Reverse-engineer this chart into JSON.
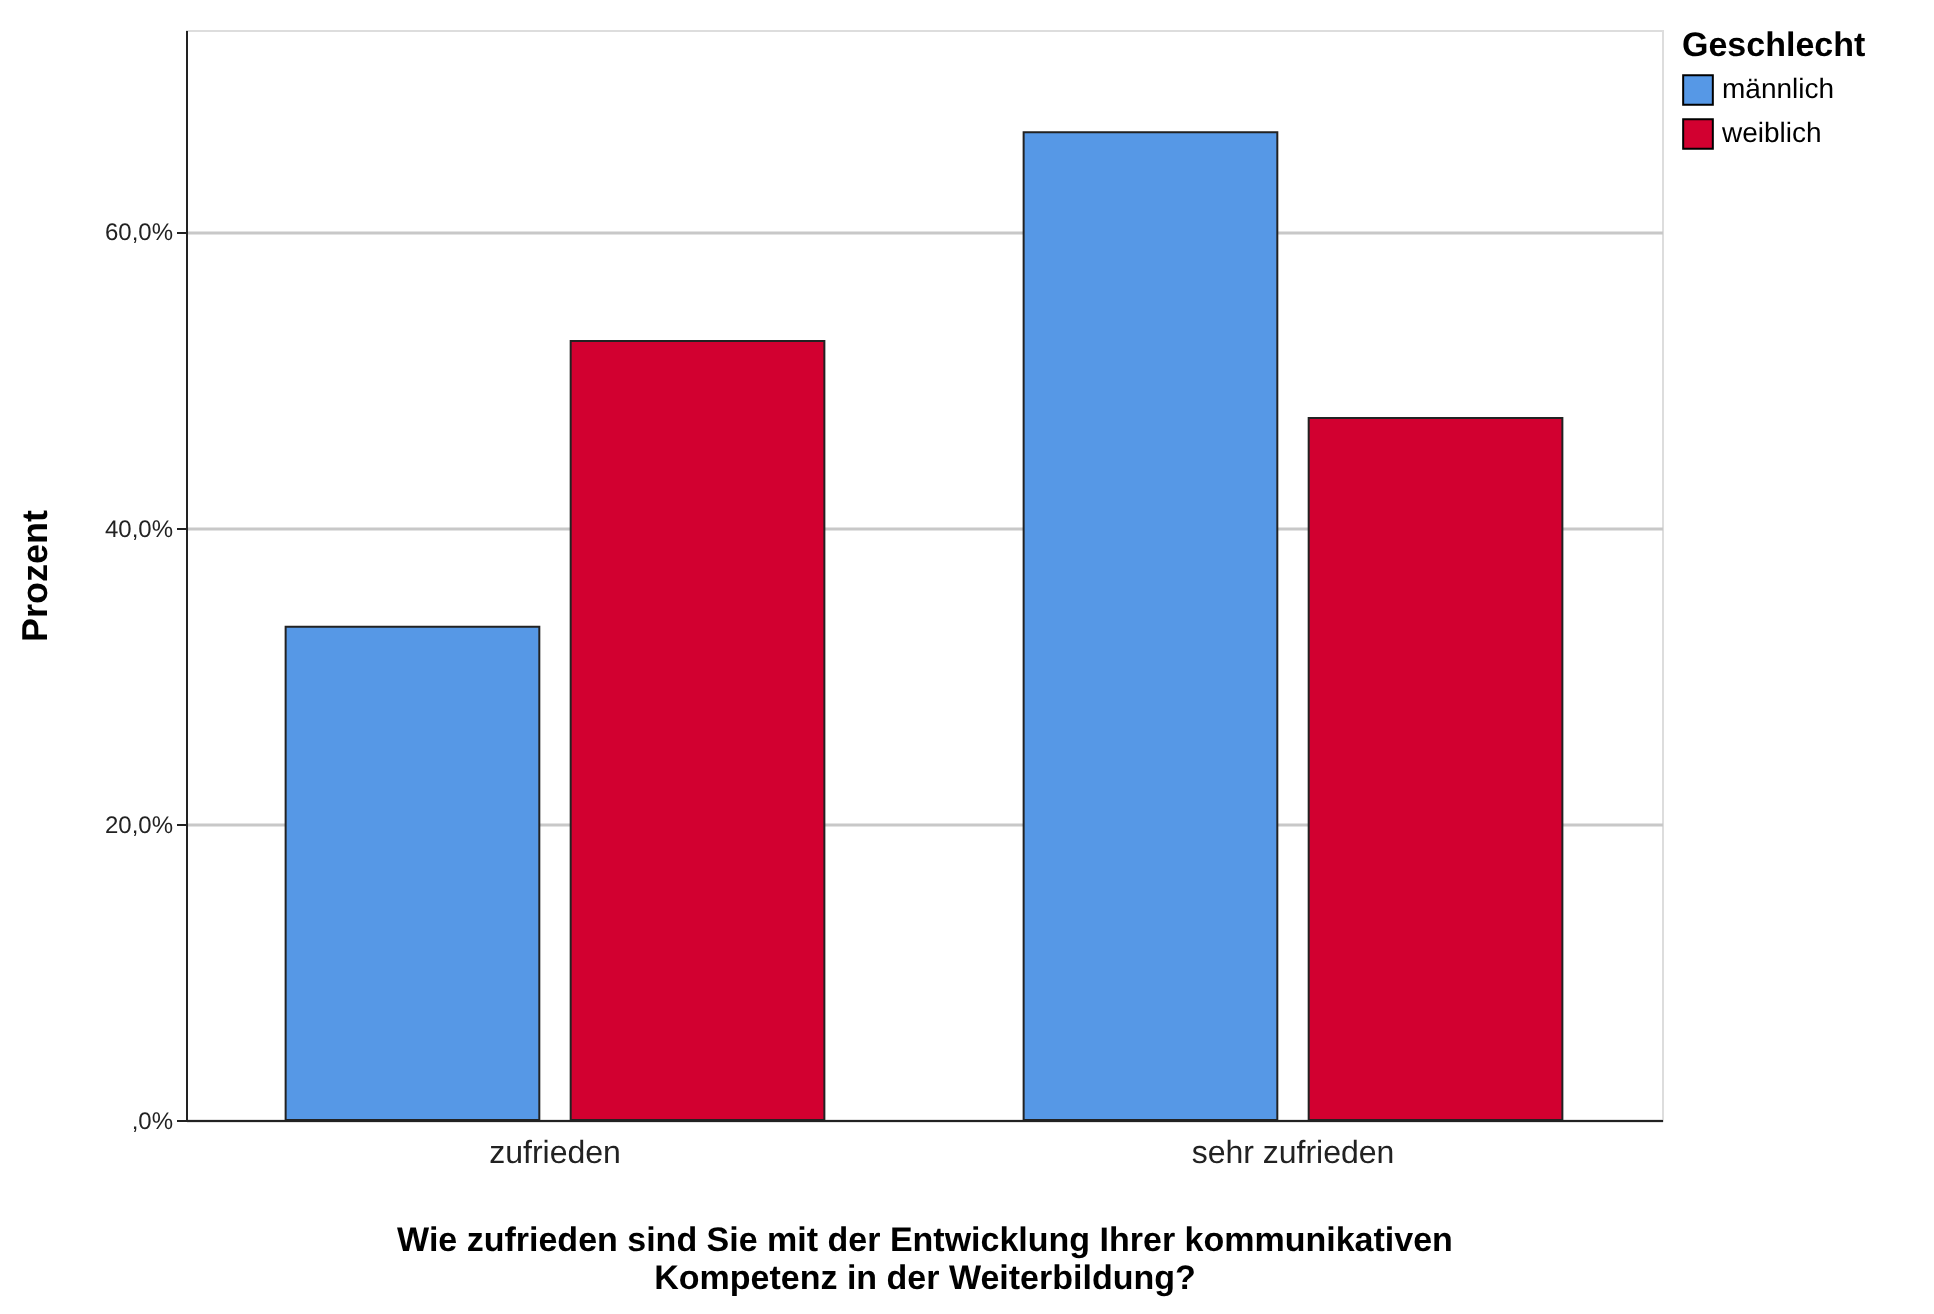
{
  "chart_data": {
    "type": "bar",
    "categories": [
      "zufrieden",
      "sehr zufrieden"
    ],
    "series": [
      {
        "name": "männlich",
        "color": "#5698e6",
        "values": [
          33.3,
          66.7
        ]
      },
      {
        "name": "weiblich",
        "color": "#d20030",
        "values": [
          52.6,
          47.4
        ]
      }
    ],
    "xlabel": "Wie zufrieden sind Sie mit der Entwicklung Ihrer kommunikativen\nKompetenz in der Weiterbildung?",
    "ylabel": "Prozent",
    "legend_title": "Geschlecht",
    "legend": "top right",
    "ylim": [
      0,
      73.6
    ],
    "yticks": [
      {
        "value": 0,
        "label": ",0%"
      },
      {
        "value": 20,
        "label": "20,0%"
      },
      {
        "value": 40,
        "label": "40,0%"
      },
      {
        "value": 60,
        "label": "60,0%"
      }
    ],
    "grid": "y"
  }
}
